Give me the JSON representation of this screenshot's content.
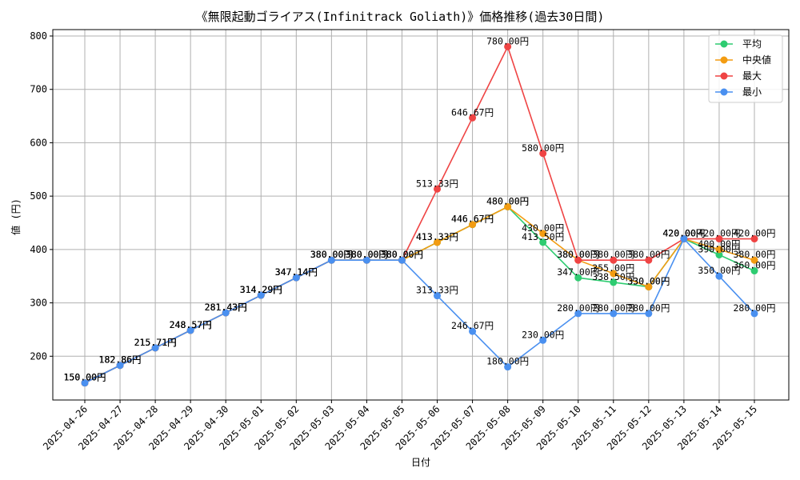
{
  "chart_data": {
    "type": "line",
    "title": "《無限起動ゴライアス(Infinitrack Goliath)》価格推移(過去30日間)",
    "xlabel": "日付",
    "ylabel": "値 (円)",
    "unit_suffix": "円",
    "ylim": [
      118,
      812
    ],
    "yticks": [
      200,
      300,
      400,
      500,
      600,
      700,
      800
    ],
    "grid": true,
    "legend_position": "top-right",
    "x": [
      "2025-04-26",
      "2025-04-27",
      "2025-04-28",
      "2025-04-29",
      "2025-04-30",
      "2025-05-01",
      "2025-05-02",
      "2025-05-03",
      "2025-05-04",
      "2025-05-05",
      "2025-05-06",
      "2025-05-07",
      "2025-05-08",
      "2025-05-09",
      "2025-05-10",
      "2025-05-11",
      "2025-05-12",
      "2025-05-13",
      "2025-05-14",
      "2025-05-15"
    ],
    "series": [
      {
        "name": "平均",
        "color": "#2ecc71",
        "values": [
          150.0,
          182.86,
          215.71,
          248.57,
          281.43,
          314.29,
          347.14,
          380.0,
          380.0,
          380.0,
          413.33,
          446.67,
          480.0,
          413.5,
          347.0,
          338.5,
          330.0,
          420.0,
          390.0,
          360.0
        ]
      },
      {
        "name": "中央値",
        "color": "#f39c12",
        "values": [
          150.0,
          182.86,
          215.71,
          248.57,
          281.43,
          314.29,
          347.14,
          380.0,
          380.0,
          380.0,
          413.33,
          446.67,
          480.0,
          430.0,
          380.0,
          355.0,
          330.0,
          420.0,
          400.0,
          380.0
        ]
      },
      {
        "name": "最大",
        "color": "#ef4444",
        "values": [
          150.0,
          182.86,
          215.71,
          248.57,
          281.43,
          314.29,
          347.14,
          380.0,
          380.0,
          380.0,
          513.33,
          646.67,
          780.0,
          580.0,
          380.0,
          380.0,
          380.0,
          420.0,
          420.0,
          420.0
        ]
      },
      {
        "name": "最小",
        "color": "#4a90f0",
        "values": [
          150.0,
          182.86,
          215.71,
          248.57,
          281.43,
          314.29,
          347.14,
          380.0,
          380.0,
          380.0,
          313.33,
          246.67,
          180.0,
          230.0,
          280.0,
          280.0,
          280.0,
          420.0,
          350.0,
          280.0
        ]
      }
    ]
  }
}
